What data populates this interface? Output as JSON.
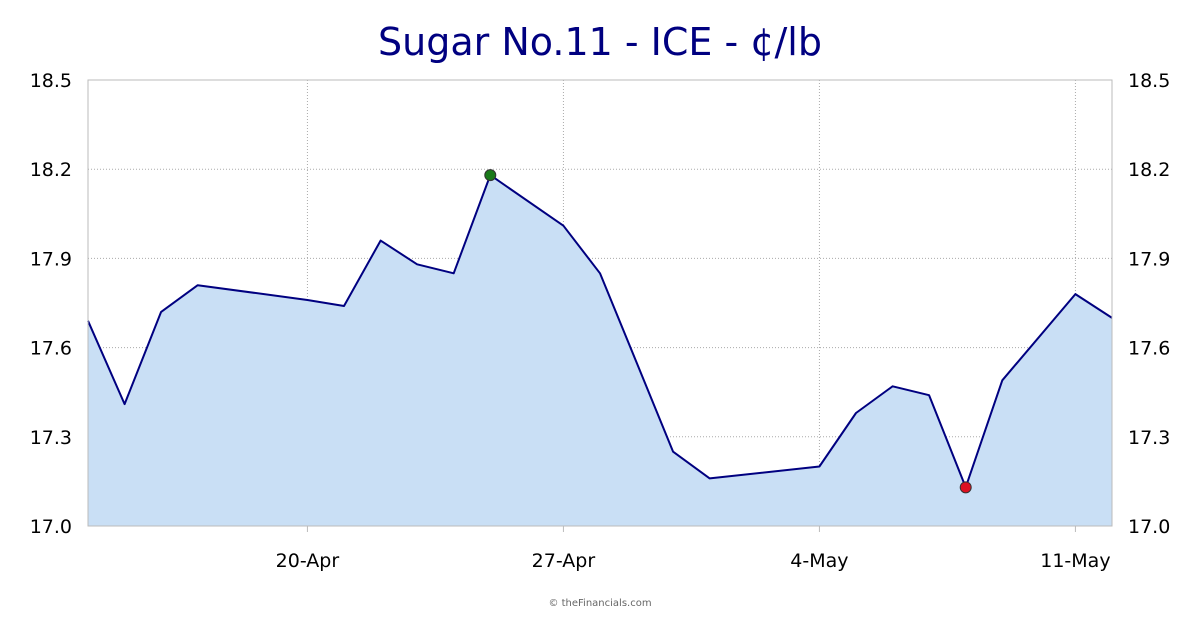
{
  "chart_data": {
    "type": "area",
    "title": "Sugar No.11 - ICE - ¢/lb",
    "xlabel": "",
    "ylabel": "",
    "x": [
      "2026-04-14",
      "2026-04-15",
      "2026-04-16",
      "2026-04-17",
      "2026-04-20",
      "2026-04-21",
      "2026-04-22",
      "2026-04-23",
      "2026-04-24",
      "2026-04-25",
      "2026-04-27",
      "2026-04-28",
      "2026-04-29",
      "2026-04-30",
      "2026-05-01",
      "2026-05-04",
      "2026-05-05",
      "2026-05-06",
      "2026-05-07",
      "2026-05-08",
      "2026-05-09",
      "2026-05-11",
      "2026-05-12"
    ],
    "series": [
      {
        "values": [
          17.69,
          17.41,
          17.72,
          17.81,
          17.76,
          17.74,
          17.96,
          17.88,
          17.85,
          18.18,
          18.01,
          17.85,
          17.55,
          17.25,
          17.16,
          17.2,
          17.38,
          17.47,
          17.44,
          17.13,
          17.49,
          17.78,
          17.7
        ]
      }
    ],
    "x_ticks": [
      "20-Apr",
      "27-Apr",
      "4-May",
      "11-May"
    ],
    "y_ticks": [
      "17.0",
      "17.3",
      "17.6",
      "17.9",
      "18.2",
      "18.5"
    ],
    "ylim": [
      17.0,
      18.5
    ],
    "grid": true,
    "y_axis_both_sides": true,
    "markers": [
      {
        "label": "high",
        "x": "2026-04-25",
        "y": 18.18,
        "color": "#1a7a1a"
      },
      {
        "label": "low",
        "x": "2026-05-08",
        "y": 17.13,
        "color": "#dd1122"
      }
    ],
    "colors": {
      "line": "#000080",
      "fill": "#c9dff5",
      "grid": "#aaaaaa",
      "axis": "#bbbbbb"
    },
    "credit": "© theFinancials.com"
  }
}
